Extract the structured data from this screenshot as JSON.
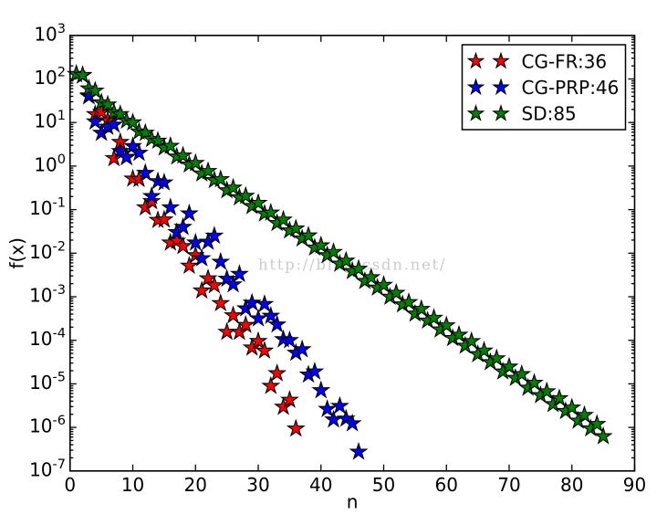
{
  "figure": {
    "background": "#ffffff",
    "description": "Convergence comparison of optimization methods: objective value f(x) vs iteration n on a log scale"
  },
  "chart_data": {
    "type": "scatter",
    "title": "",
    "xlabel": "n",
    "ylabel": "f(x)",
    "x_axis": {
      "min": 0,
      "max": 90,
      "tick_step": 10,
      "tick_labels": [
        "0",
        "10",
        "20",
        "30",
        "40",
        "50",
        "60",
        "70",
        "80",
        "90"
      ]
    },
    "y_axis": {
      "scale": "log",
      "min": 1e-07,
      "max": 1000.0,
      "decade_exponents": [
        3,
        2,
        1,
        0,
        -1,
        -2,
        -3,
        -4,
        -5,
        -6,
        -7
      ],
      "tick_label_base": "10"
    },
    "grid": false,
    "legend": {
      "position": "upper right",
      "markers_per_entry": 2,
      "entries": [
        {
          "label": "CG-FR:36",
          "color": "#ff0000"
        },
        {
          "label": "CG-PRP:46",
          "color": "#0000ff"
        },
        {
          "label": "SD:85",
          "color": "#008000"
        }
      ]
    },
    "watermark": {
      "text": "http://blog.csdn.net/",
      "color": "#cccccc"
    },
    "marker": {
      "shape": "star",
      "edge_color": "#000000"
    },
    "series": [
      {
        "name": "CG-FR:36",
        "method": "CG-FR",
        "iterations": 36,
        "color": "#ff0000",
        "marker": "star",
        "x": [
          1,
          2,
          3,
          4,
          5,
          6,
          7,
          8,
          9,
          10,
          11,
          12,
          13,
          14,
          15,
          16,
          17,
          18,
          19,
          20,
          21,
          22,
          23,
          24,
          25,
          26,
          27,
          28,
          29,
          30,
          31,
          32,
          33,
          34,
          35,
          36
        ],
        "y": [
          129.0,
          120.0,
          39.8,
          15.5,
          17.4,
          11.2,
          1.51,
          3.55,
          1.62,
          0.513,
          0.501,
          0.112,
          0.155,
          0.0575,
          0.0589,
          0.0174,
          0.0191,
          0.0145,
          0.00513,
          0.00891,
          0.00138,
          0.00263,
          0.00182,
          0.000708,
          0.000155,
          0.000372,
          0.000155,
          0.000224,
          6.76e-05,
          9.55e-05,
          5.75e-05,
          8.91e-06,
          1.74e-05,
          2.95e-06,
          4.27e-06,
          9.33e-07
        ]
      },
      {
        "name": "CG-PRP:46",
        "method": "CG-PRP",
        "iterations": 46,
        "color": "#0000ff",
        "marker": "star",
        "x": [
          1,
          2,
          3,
          4,
          5,
          6,
          7,
          8,
          9,
          10,
          11,
          12,
          13,
          14,
          15,
          16,
          17,
          18,
          19,
          20,
          21,
          22,
          23,
          24,
          25,
          26,
          27,
          28,
          29,
          30,
          31,
          32,
          33,
          34,
          35,
          36,
          37,
          38,
          39,
          40,
          41,
          42,
          43,
          44,
          45,
          46
        ],
        "y": [
          129.0,
          120.0,
          41.7,
          10.5,
          5.75,
          7.94,
          8.91,
          2.19,
          1.58,
          2.85,
          2.0,
          0.692,
          0.204,
          0.447,
          0.417,
          0.112,
          0.0302,
          0.0398,
          0.0813,
          0.0174,
          0.00759,
          0.0182,
          0.0251,
          0.00631,
          0.00257,
          0.00191,
          0.00331,
          0.000537,
          0.000724,
          0.000316,
          0.000676,
          0.000363,
          0.000229,
          0.000105,
          0.0001,
          5.13e-05,
          6.17e-05,
          1.62e-05,
          1.91e-05,
          7.08e-06,
          2.63e-06,
          1.51e-06,
          3.09e-06,
          1.58e-06,
          1.23e-06,
          2.75e-07
        ]
      },
      {
        "name": "SD:85",
        "method": "SD",
        "iterations": 85,
        "color": "#008000",
        "marker": "star",
        "x": [
          1,
          2,
          3,
          4,
          5,
          6,
          7,
          8,
          9,
          10,
          11,
          12,
          13,
          14,
          15,
          16,
          17,
          18,
          19,
          20,
          21,
          22,
          23,
          24,
          25,
          26,
          27,
          28,
          29,
          30,
          31,
          32,
          33,
          34,
          35,
          36,
          37,
          38,
          39,
          40,
          41,
          42,
          43,
          44,
          45,
          46,
          47,
          48,
          49,
          50,
          51,
          52,
          53,
          54,
          55,
          56,
          57,
          58,
          59,
          60,
          61,
          62,
          63,
          64,
          65,
          66,
          67,
          68,
          69,
          70,
          71,
          72,
          73,
          74,
          75,
          76,
          77,
          78,
          79,
          80,
          81,
          82,
          83,
          84,
          85
        ],
        "y": [
          129.0,
          123.0,
          60.3,
          53.7,
          28.8,
          25.7,
          17.0,
          15.5,
          11.0,
          10.0,
          6.17,
          5.75,
          4.17,
          3.8,
          2.64,
          2.9,
          1.64,
          1.73,
          1.08,
          1.17,
          0.673,
          0.764,
          0.473,
          0.498,
          0.277,
          0.317,
          0.191,
          0.206,
          0.12,
          0.142,
          0.0809,
          0.0849,
          0.049,
          0.0585,
          0.0331,
          0.0367,
          0.0217,
          0.0253,
          0.0134,
          0.015,
          0.00893,
          0.0106,
          0.0057,
          0.00669,
          0.00386,
          0.00435,
          0.00228,
          0.00278,
          0.00161,
          0.00186,
          0.000993,
          0.00122,
          0.000663,
          0.000746,
          0.000406,
          0.000522,
          0.000282,
          0.000325,
          0.000176,
          0.000219,
          0.000112,
          0.000133,
          7.47e-05,
          9.52e-05,
          4.78e-05,
          5.77e-05,
          3.13e-05,
          3.83e-05,
          1.91e-05,
          2.47e-05,
          1.36e-05,
          1.66e-05,
          8.11e-06,
          1.05e-05,
          5.47e-06,
          6.68e-06,
          3.4e-06,
          4.64e-06,
          2.36e-06,
          2.84e-06,
          1.42e-06,
          1.91e-06,
          9.42e-07,
          1.19e-06,
          6.23e-07
        ]
      }
    ]
  }
}
